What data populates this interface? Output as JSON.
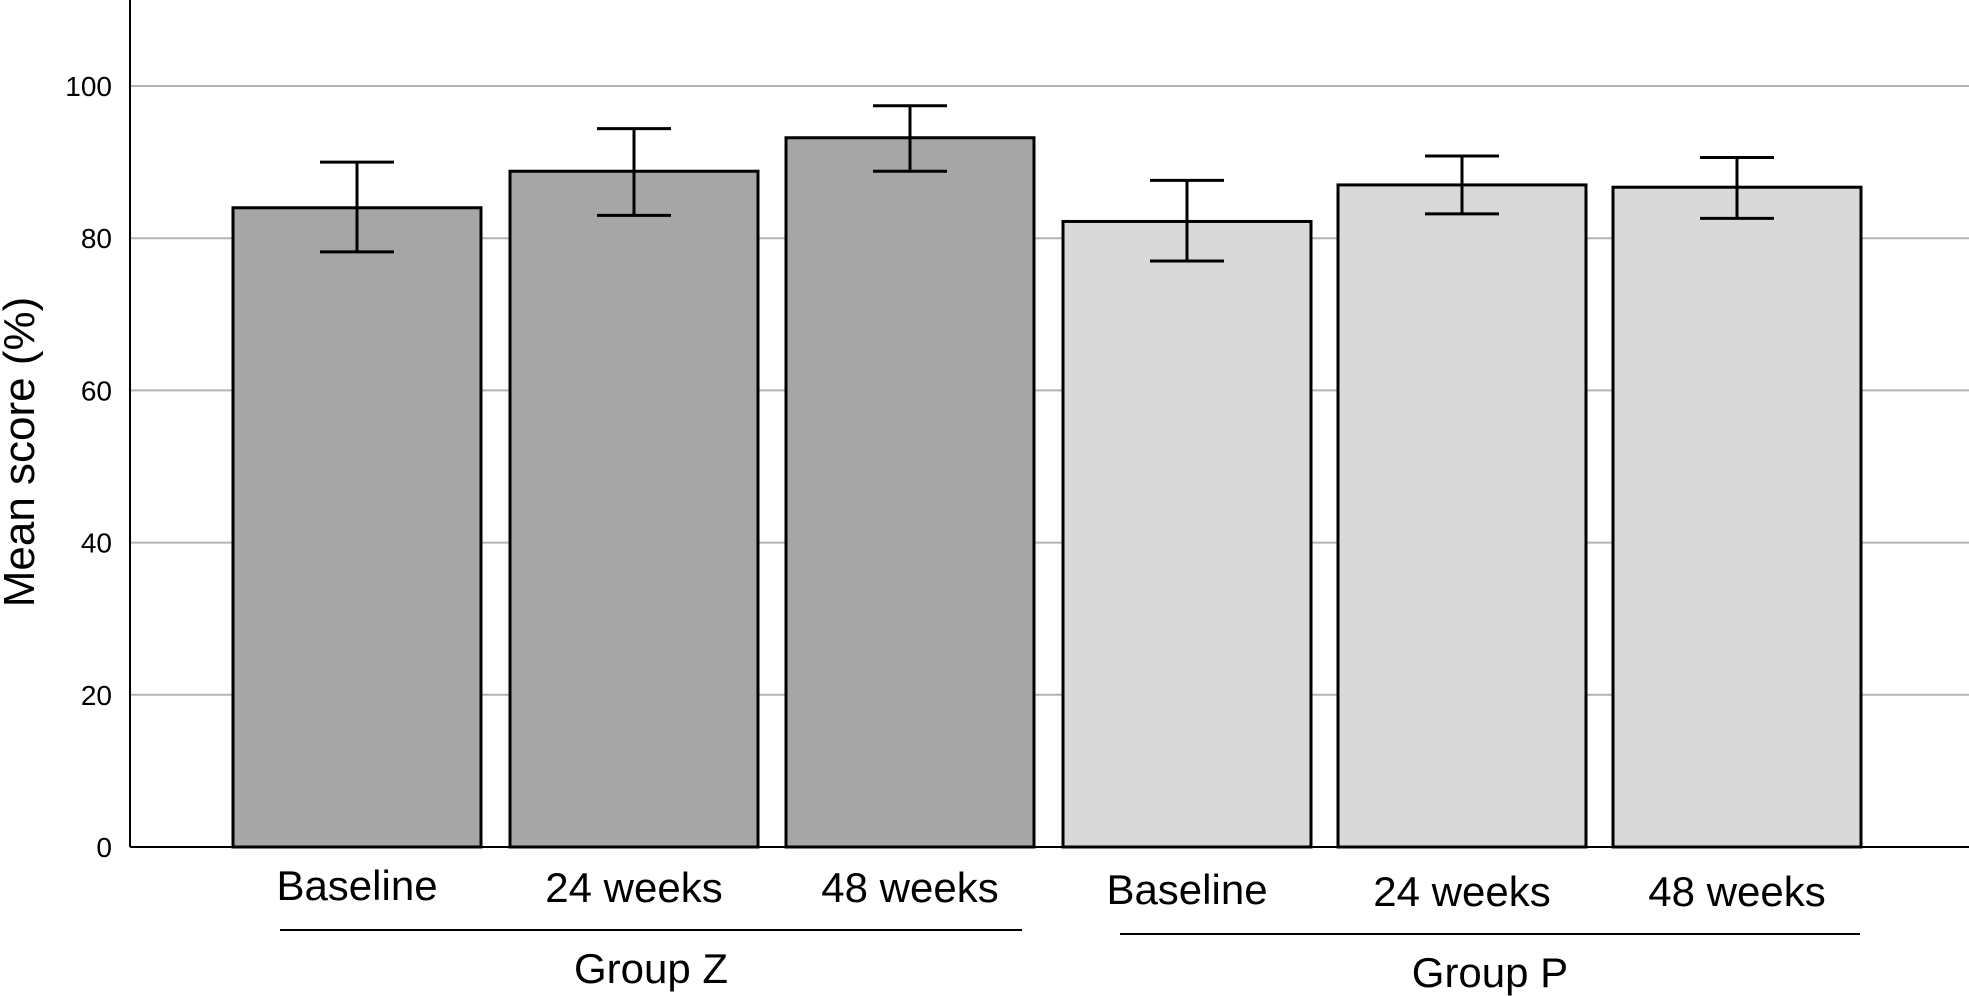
{
  "chart_data": {
    "type": "bar",
    "title": "",
    "xlabel": "",
    "ylabel": "Mean score (%)",
    "ylim": [
      0,
      110
    ],
    "yticks": [
      0,
      20,
      40,
      60,
      80,
      100
    ],
    "grid": true,
    "groups": [
      {
        "name": "Group Z",
        "color": "#a6a6a6",
        "categories": [
          "Baseline",
          "24 weeks",
          "48 weeks"
        ],
        "values": [
          84,
          88.8,
          93.2
        ],
        "error": [
          [
            78.2,
            90
          ],
          [
            83,
            94.4
          ],
          [
            88.8,
            97.4
          ]
        ]
      },
      {
        "name": "Group P",
        "color": "#d9d9d9",
        "categories": [
          "Baseline",
          "24 weeks",
          "48 weeks"
        ],
        "values": [
          82.2,
          87,
          86.7
        ],
        "error": [
          [
            77,
            87.6
          ],
          [
            83.2,
            90.8
          ],
          [
            82.6,
            90.6
          ]
        ]
      }
    ]
  }
}
